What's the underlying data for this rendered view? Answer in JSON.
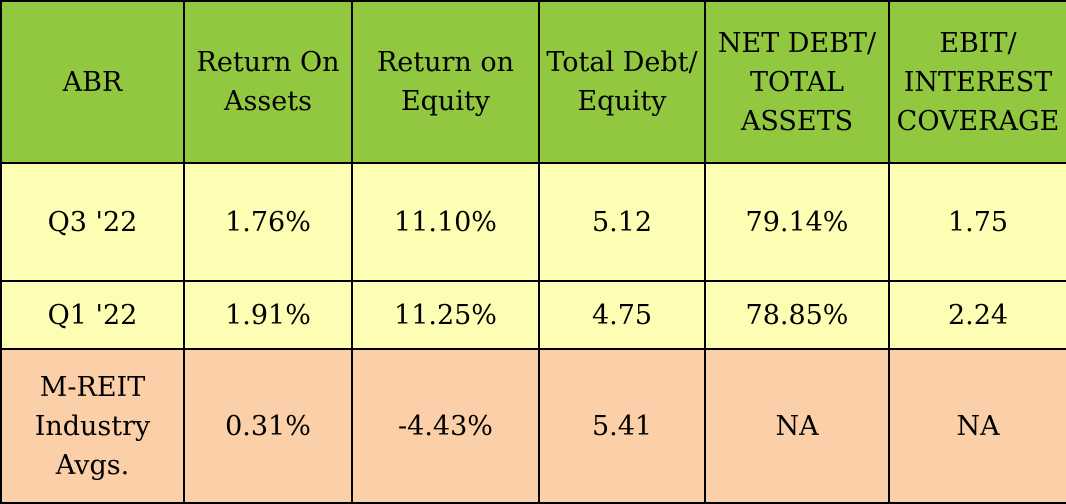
{
  "chart_data": {
    "type": "table",
    "columns": [
      "ABR",
      "Return On\nAssets",
      "Return on\nEquity",
      "Total Debt/\nEquity",
      "NET DEBT/\nTOTAL\nASSETS",
      "EBIT/\nINTEREST\nCOVERAGE"
    ],
    "rows": [
      [
        "Q3 '22",
        "1.76%",
        "11.10%",
        "5.12",
        "79.14%",
        "1.75"
      ],
      [
        "Q1 '22",
        "1.91%",
        "11.25%",
        "4.75",
        "78.85%",
        "2.24"
      ],
      [
        "M-REIT\nIndustry\nAvgs.",
        "0.31%",
        "-4.43%",
        "5.41",
        "NA",
        "NA"
      ]
    ]
  },
  "colors": {
    "header_bg": "#92c83f",
    "abr_rows_bg": "#fdfdb3",
    "industry_row_bg": "#fbcfa8",
    "border": "#000000"
  }
}
